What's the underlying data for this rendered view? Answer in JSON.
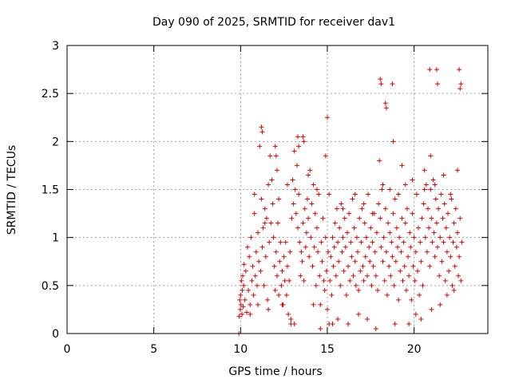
{
  "chart_data": {
    "type": "scatter",
    "title": "Day 090 of 2025, SRMTID for receiver dav1",
    "xlabel": "GPS time / hours",
    "ylabel": "SRMTID / TECUs",
    "xlim": [
      0,
      24.25
    ],
    "ylim": [
      0,
      3
    ],
    "xticks": [
      0,
      5,
      10,
      15,
      20
    ],
    "yticks": [
      0,
      0.5,
      1,
      1.5,
      2,
      2.5,
      3
    ],
    "xtick_labels": [
      "0",
      "5",
      "10",
      "15",
      "20"
    ],
    "ytick_labels": [
      "0",
      "0.5",
      "1",
      "1.5",
      "2",
      "2.5",
      "3"
    ],
    "grid": true,
    "marker": "+",
    "series": [
      {
        "name": "dav1",
        "color": "#e00000",
        "x": [
          9.9,
          9.92,
          9.95,
          9.98,
          10.0,
          10.02,
          10.05,
          10.08,
          10.1,
          10.12,
          10.15,
          10.18,
          10.2,
          10.25,
          10.3,
          10.35,
          10.4,
          10.45,
          10.5,
          10.55,
          10.6,
          10.65,
          10.7,
          10.75,
          10.8,
          10.85,
          10.9,
          10.95,
          11.0,
          11.05,
          11.1,
          11.15,
          11.2,
          11.25,
          11.3,
          11.35,
          11.4,
          11.45,
          11.5,
          11.55,
          11.6,
          11.65,
          11.7,
          11.75,
          11.8,
          11.85,
          11.9,
          11.95,
          12.0,
          12.05,
          12.1,
          12.15,
          12.2,
          12.25,
          12.3,
          12.35,
          12.4,
          12.45,
          12.5,
          12.55,
          12.6,
          12.65,
          12.7,
          12.75,
          12.8,
          12.85,
          12.9,
          12.95,
          13.0,
          13.05,
          13.1,
          13.15,
          13.2,
          13.25,
          13.3,
          13.35,
          13.4,
          13.45,
          13.5,
          13.55,
          13.6,
          13.65,
          13.7,
          13.75,
          13.8,
          13.85,
          13.9,
          13.95,
          14.0,
          14.05,
          14.1,
          14.15,
          14.2,
          14.25,
          14.3,
          14.35,
          14.4,
          14.45,
          14.5,
          14.55,
          14.6,
          14.65,
          14.7,
          14.75,
          14.8,
          14.85,
          14.9,
          14.95,
          15.0,
          15.05,
          15.1,
          15.15,
          15.2,
          15.25,
          15.3,
          15.35,
          15.4,
          15.45,
          15.5,
          15.55,
          15.6,
          15.65,
          15.7,
          15.75,
          15.8,
          15.85,
          15.9,
          15.95,
          16.0,
          16.05,
          16.1,
          16.15,
          16.2,
          16.25,
          16.3,
          16.35,
          16.4,
          16.45,
          16.5,
          16.55,
          16.6,
          16.65,
          16.7,
          16.75,
          16.8,
          16.85,
          16.9,
          16.95,
          17.0,
          17.05,
          17.1,
          17.15,
          17.2,
          17.25,
          17.3,
          17.35,
          17.4,
          17.45,
          17.5,
          17.55,
          17.6,
          17.65,
          17.7,
          17.75,
          17.8,
          17.85,
          17.9,
          17.95,
          18.0,
          18.05,
          18.1,
          18.15,
          18.2,
          18.25,
          18.3,
          18.35,
          18.4,
          18.45,
          18.5,
          18.55,
          18.6,
          18.65,
          18.7,
          18.75,
          18.8,
          18.85,
          18.9,
          18.95,
          19.0,
          19.05,
          19.1,
          19.15,
          19.2,
          19.25,
          19.3,
          19.35,
          19.4,
          19.45,
          19.5,
          19.55,
          19.6,
          19.65,
          19.7,
          19.75,
          19.8,
          19.85,
          19.9,
          19.95,
          20.0,
          20.05,
          20.1,
          20.15,
          20.2,
          20.25,
          20.3,
          20.35,
          20.4,
          20.45,
          20.5,
          20.55,
          20.6,
          20.65,
          20.7,
          20.75,
          20.8,
          20.85,
          20.9,
          20.95,
          21.0,
          21.05,
          21.1,
          21.15,
          21.2,
          21.25,
          21.3,
          21.35,
          21.4,
          21.45,
          21.5,
          21.55,
          21.6,
          21.65,
          21.7,
          21.75,
          21.8,
          21.85,
          21.9,
          21.95,
          22.0,
          22.05,
          22.1,
          22.15,
          22.2,
          22.25,
          22.3,
          22.35,
          22.4,
          22.45,
          22.5,
          22.55,
          22.6,
          22.65,
          22.7,
          22.75,
          11.2,
          11.25,
          12.0,
          12.05,
          12.1,
          13.3,
          13.35,
          13.6,
          13.65,
          14.9,
          15.0,
          18.05,
          18.1,
          18.35,
          18.4,
          18.75,
          18.8,
          19.3,
          20.9,
          20.95,
          21.3,
          21.35,
          22.6,
          22.65,
          22.7,
          10.55,
          11.0,
          11.6,
          12.4,
          12.9,
          13.1,
          14.2,
          14.6,
          15.3,
          15.6,
          16.2,
          16.8,
          17.3,
          17.8,
          18.9,
          19.7,
          20.1,
          20.4,
          21.0,
          21.5,
          21.9,
          22.3,
          10.8,
          11.4,
          12.2,
          12.7,
          13.9,
          14.4,
          15.1,
          15.9,
          16.6,
          17.1,
          17.6,
          18.2,
          18.6,
          19.1,
          19.5,
          19.9,
          20.6,
          21.2,
          21.7,
          22.1,
          22.5
        ],
        "y": [
          0.0,
          0.18,
          0.35,
          0.25,
          0.4,
          0.3,
          0.55,
          0.2,
          0.45,
          0.6,
          0.28,
          0.5,
          0.72,
          0.35,
          0.65,
          0.22,
          0.9,
          0.45,
          0.8,
          0.3,
          1.0,
          0.55,
          0.7,
          0.4,
          1.25,
          0.6,
          0.85,
          0.5,
          1.05,
          0.75,
          1.95,
          0.65,
          1.4,
          0.9,
          1.1,
          0.5,
          1.3,
          0.8,
          1.2,
          0.35,
          1.55,
          0.95,
          1.85,
          1.15,
          1.6,
          1.35,
          1.0,
          0.7,
          0.45,
          0.85,
          0.6,
          1.15,
          0.4,
          0.75,
          0.95,
          0.5,
          0.65,
          0.3,
          0.8,
          0.55,
          0.95,
          0.4,
          0.7,
          0.2,
          0.55,
          0.85,
          0.1,
          1.2,
          1.6,
          1.35,
          1.9,
          1.5,
          1.25,
          1.75,
          1.1,
          1.45,
          0.95,
          0.6,
          0.85,
          0.75,
          1.15,
          0.55,
          1.3,
          0.9,
          1.05,
          1.4,
          1.2,
          0.8,
          1.7,
          1.0,
          1.35,
          0.7,
          1.55,
          0.9,
          1.25,
          0.5,
          1.1,
          0.85,
          1.45,
          0.6,
          0.3,
          0.95,
          0.75,
          1.2,
          0.55,
          0.45,
          1.0,
          0.65,
          0.25,
          0.85,
          0.1,
          0.55,
          0.8,
          0.4,
          1.0,
          0.7,
          0.9,
          1.15,
          0.6,
          1.3,
          0.95,
          0.75,
          1.1,
          0.5,
          1.35,
          0.85,
          1.0,
          0.65,
          1.2,
          0.9,
          0.4,
          1.05,
          0.7,
          1.25,
          0.55,
          0.95,
          0.8,
          1.4,
          0.6,
          1.1,
          0.75,
          0.5,
          1.0,
          0.85,
          0.45,
          1.2,
          0.65,
          0.95,
          1.3,
          0.7,
          0.55,
          1.15,
          0.8,
          1.0,
          0.6,
          1.45,
          0.9,
          0.75,
          1.1,
          0.5,
          0.95,
          0.7,
          1.25,
          0.85,
          0.6,
          1.05,
          0.45,
          1.35,
          1.8,
          1.2,
          0.9,
          1.5,
          0.75,
          1.0,
          0.55,
          1.3,
          0.85,
          0.4,
          1.15,
          0.7,
          1.05,
          0.6,
          0.95,
          0.8,
          1.25,
          0.5,
          1.4,
          0.75,
          1.1,
          0.9,
          0.35,
          1.0,
          0.65,
          0.85,
          1.2,
          0.55,
          0.95,
          0.7,
          1.15,
          0.45,
          1.3,
          0.8,
          0.6,
          1.05,
          0.9,
          0.35,
          1.25,
          0.7,
          1.0,
          0.55,
          0.85,
          1.45,
          0.65,
          1.1,
          0.4,
          0.95,
          0.75,
          1.2,
          0.5,
          1.35,
          1.7,
          1.0,
          1.55,
          0.85,
          1.3,
          1.1,
          0.7,
          1.5,
          1.2,
          0.95,
          1.6,
          1.05,
          0.8,
          1.4,
          1.15,
          0.9,
          1.3,
          0.6,
          1.0,
          1.45,
          0.75,
          1.2,
          0.95,
          1.35,
          0.55,
          1.1,
          0.85,
          1.25,
          0.65,
          1.0,
          0.8,
          1.4,
          0.5,
          0.95,
          1.15,
          0.7,
          1.3,
          0.9,
          1.05,
          0.6,
          0.8,
          1.2,
          0.55,
          0.95,
          2.15,
          2.1,
          1.95,
          1.85,
          1.7,
          2.05,
          1.95,
          2.05,
          2.0,
          1.85,
          2.25,
          2.65,
          2.6,
          2.4,
          2.35,
          2.6,
          2.0,
          1.75,
          2.75,
          1.85,
          2.75,
          2.6,
          2.75,
          2.55,
          2.6,
          0.2,
          0.3,
          0.25,
          0.3,
          0.15,
          0.1,
          0.3,
          0.05,
          0.1,
          0.15,
          0.1,
          0.2,
          0.15,
          0.05,
          0.1,
          0.1,
          0.2,
          0.15,
          0.25,
          0.3,
          0.4,
          0.45,
          1.45,
          1.15,
          1.4,
          1.55,
          1.65,
          1.5,
          1.45,
          1.3,
          1.45,
          1.35,
          1.25,
          1.55,
          1.5,
          1.45,
          1.55,
          1.6,
          1.5,
          1.55,
          1.65,
          1.45,
          1.7
        ]
      }
    ]
  }
}
